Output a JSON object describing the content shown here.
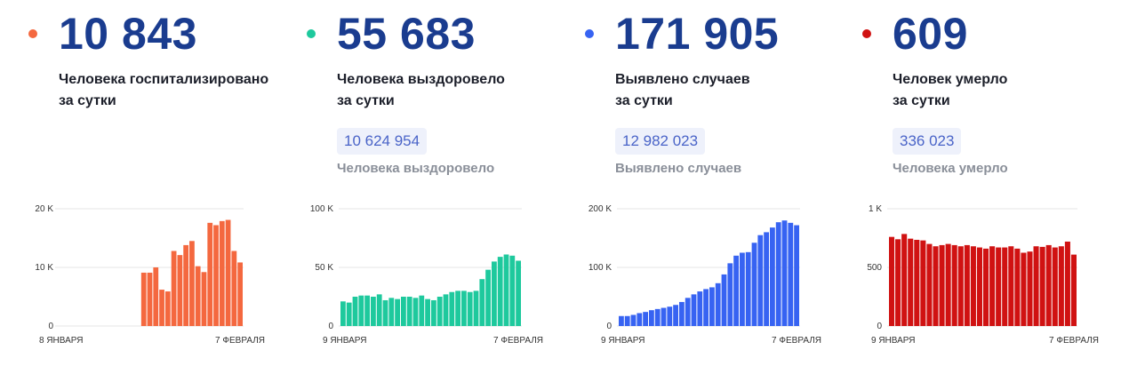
{
  "cards": [
    {
      "color": "#f4683f",
      "value": "10 843",
      "desc_line1": "Человека госпитализировано",
      "desc_line2": "за сутки",
      "total": "",
      "total_label": ""
    },
    {
      "color": "#1ec99d",
      "value": "55 683",
      "desc_line1": "Человека выздоровело",
      "desc_line2": "за сутки",
      "total": "10 624 954",
      "total_label": "Человека выздоровело"
    },
    {
      "color": "#3763f2",
      "value": "171 905",
      "desc_line1": "Выявлено случаев",
      "desc_line2": "за сутки",
      "total": "12 982 023",
      "total_label": "Выявлено случаев"
    },
    {
      "color": "#d01212",
      "value": "609",
      "desc_line1": "Человек умерло",
      "desc_line2": "за сутки",
      "total": "336 023",
      "total_label": "Человека умерло"
    }
  ],
  "chart_data": [
    {
      "type": "bar",
      "color": "#f4683f",
      "ylim": [
        0,
        20000
      ],
      "yticks": [
        "0",
        "10 K",
        "20 K"
      ],
      "xticks": [
        "8 ЯНВАРЯ",
        "7 ФЕВРАЛЯ"
      ],
      "values": [
        0,
        0,
        0,
        0,
        0,
        0,
        0,
        0,
        0,
        0,
        0,
        0,
        0,
        0,
        9100,
        9100,
        10000,
        6200,
        5900,
        12800,
        12100,
        13800,
        14500,
        10200,
        9200,
        17600,
        17200,
        17900,
        18100,
        12800,
        10843
      ]
    },
    {
      "type": "bar",
      "color": "#1ec99d",
      "ylim": [
        0,
        100000
      ],
      "yticks": [
        "0",
        "50 K",
        "100 K"
      ],
      "xticks": [
        "9 ЯНВАРЯ",
        "7 ФЕВРАЛЯ"
      ],
      "values": [
        21000,
        20000,
        25000,
        26000,
        26000,
        25000,
        27000,
        22000,
        24000,
        23000,
        25000,
        25000,
        24000,
        26000,
        23000,
        22000,
        25000,
        27000,
        29000,
        30000,
        30000,
        29000,
        30000,
        40000,
        48000,
        55000,
        59000,
        61000,
        60000,
        55683
      ]
    },
    {
      "type": "bar",
      "color": "#3763f2",
      "ylim": [
        0,
        200000
      ],
      "yticks": [
        "0",
        "100 K",
        "200 K"
      ],
      "xticks": [
        "9 ЯНВАРЯ",
        "7 ФЕВРАЛЯ"
      ],
      "values": [
        17000,
        17000,
        19000,
        22000,
        24000,
        27000,
        29000,
        31000,
        33000,
        36000,
        41000,
        48000,
        54000,
        59000,
        63000,
        66000,
        73000,
        88000,
        107000,
        120000,
        125000,
        126000,
        142000,
        155000,
        160000,
        168000,
        177000,
        180000,
        176000,
        171905
      ]
    },
    {
      "type": "bar",
      "color": "#d01212",
      "ylim": [
        0,
        1000
      ],
      "yticks": [
        "0",
        "500",
        "1 K"
      ],
      "xticks": [
        "9 ЯНВАРЯ",
        "7 ФЕВРАЛЯ"
      ],
      "values": [
        760,
        740,
        785,
        745,
        735,
        730,
        700,
        680,
        690,
        700,
        690,
        680,
        690,
        680,
        670,
        660,
        680,
        670,
        670,
        680,
        660,
        625,
        635,
        680,
        675,
        690,
        670,
        680,
        720,
        609
      ]
    }
  ]
}
